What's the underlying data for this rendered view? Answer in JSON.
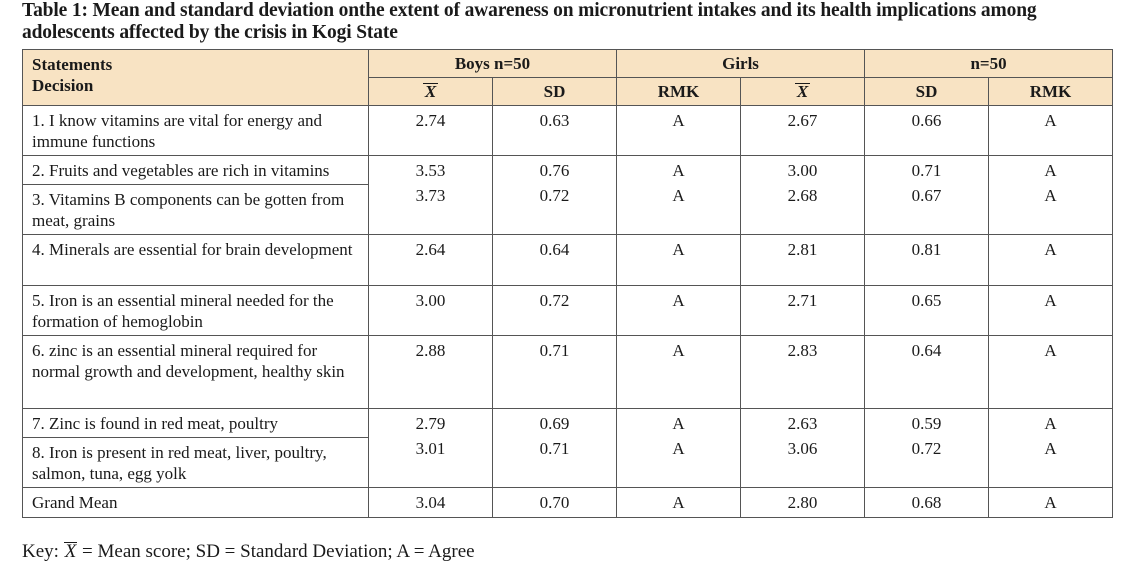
{
  "caption": "Table 1: Mean and standard deviation onthe extent of awareness on micronutrient intakes and its health implications among adolescents affected by the crisis in Kogi State",
  "header": {
    "statements_line1": "Statements",
    "statements_line2": "Decision",
    "group_boys": "Boys n=50",
    "group_girls": "Girls",
    "group_n": "n=50",
    "cols": [
      "X",
      "SD",
      "RMK",
      "X",
      "SD",
      "RMK"
    ]
  },
  "rows": [
    {
      "statement": "1. I know vitamins are vital for energy and immune functions",
      "boys_mean": "2.74",
      "boys_sd": "0.63",
      "boys_rmk": "A",
      "girls_mean": "2.67",
      "girls_sd": "0.66",
      "girls_rmk": "A"
    },
    {
      "statement": "2. Fruits and vegetables are rich in vitamins",
      "boys_mean": "3.53",
      "boys_sd": "0.76",
      "boys_rmk": "A",
      "girls_mean": "3.00",
      "girls_sd": "0.71",
      "girls_rmk": "A"
    },
    {
      "statement": "3. Vitamins B components can be gotten from meat, grains",
      "boys_mean": "3.73",
      "boys_sd": "0.72",
      "boys_rmk": "A",
      "girls_mean": "2.68",
      "girls_sd": "0.67",
      "girls_rmk": "A"
    },
    {
      "statement": "4. Minerals are essential for brain development",
      "boys_mean": "2.64",
      "boys_sd": "0.64",
      "boys_rmk": "A",
      "girls_mean": "2.81",
      "girls_sd": "0.81",
      "girls_rmk": "A"
    },
    {
      "statement": "5. Iron is an essential mineral needed for the formation of hemoglobin",
      "boys_mean": "3.00",
      "boys_sd": "0.72",
      "boys_rmk": "A",
      "girls_mean": "2.71",
      "girls_sd": "0.65",
      "girls_rmk": "A"
    },
    {
      "statement": "6. zinc is an essential mineral required for normal growth and development, healthy skin",
      "boys_mean": "2.88",
      "boys_sd": "0.71",
      "boys_rmk": "A",
      "girls_mean": "2.83",
      "girls_sd": "0.64",
      "girls_rmk": "A"
    },
    {
      "statement": "7. Zinc is found in red meat, poultry",
      "boys_mean": "2.79",
      "boys_sd": "0.69",
      "boys_rmk": "A",
      "girls_mean": "2.63",
      "girls_sd": "0.59",
      "girls_rmk": "A"
    },
    {
      "statement": "8. Iron is present in red meat, liver, poultry, salmon, tuna, egg yolk",
      "boys_mean": "3.01",
      "boys_sd": "0.71",
      "boys_rmk": "A",
      "girls_mean": "3.06",
      "girls_sd": "0.72",
      "girls_rmk": "A"
    },
    {
      "statement": "Grand Mean",
      "boys_mean": "3.04",
      "boys_sd": "0.70",
      "boys_rmk": "A",
      "girls_mean": "2.80",
      "girls_sd": "0.68",
      "girls_rmk": "A"
    }
  ],
  "key": {
    "prefix": "Key: ",
    "symbol": "X",
    "text": " = Mean score; SD = Standard Deviation; A = Agree"
  }
}
